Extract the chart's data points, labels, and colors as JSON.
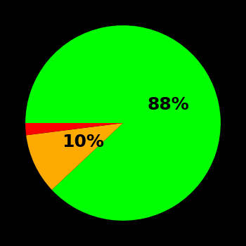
{
  "slices": [
    88,
    10,
    2
  ],
  "colors": [
    "#00ff00",
    "#ffaa00",
    "#ff0000"
  ],
  "labels": [
    "88%",
    "10%",
    ""
  ],
  "background_color": "#000000",
  "text_color": "#000000",
  "startangle": 180,
  "label_fontsize": 18,
  "label_fontweight": "bold",
  "green_label_r": 0.5,
  "yellow_label_r": 0.45
}
